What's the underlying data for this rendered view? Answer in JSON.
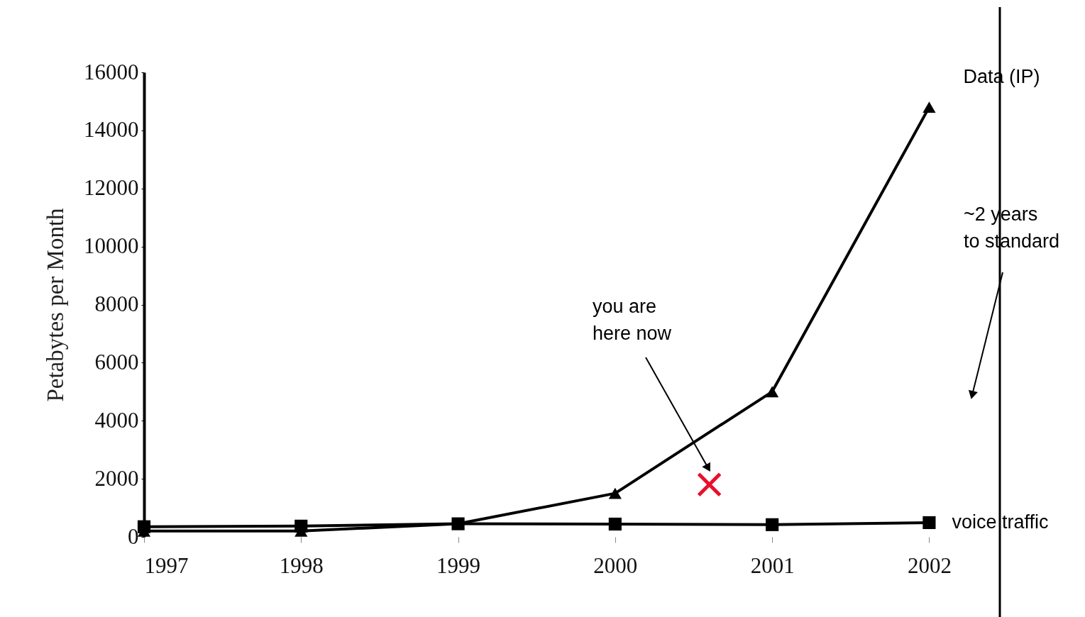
{
  "chart_data": {
    "type": "line",
    "ylabel": "Petabytes per Month",
    "x": [
      1997,
      1998,
      1999,
      2000,
      2001,
      2002
    ],
    "series": [
      {
        "name": "Data (IP)",
        "color": "#000000",
        "marker": "triangle",
        "values": [
          200,
          200,
          450,
          1500,
          5000,
          14800
        ]
      },
      {
        "name": "voice traffic",
        "color": "#000000",
        "marker": "square",
        "values": [
          350,
          370,
          450,
          440,
          420,
          490
        ]
      },
      {
        "type": "scatter",
        "color": "#e8102a",
        "marker": "cross",
        "x": [
          2000.6
        ],
        "values": [
          1800
        ]
      }
    ],
    "xlim": [
      1997,
      2002.45
    ],
    "xticks": [
      1997,
      1998,
      1999,
      2000,
      2001,
      2002
    ],
    "ylim": [
      0,
      16000
    ],
    "yticks": [
      0,
      2000,
      4000,
      6000,
      8000,
      10000,
      12000,
      14000,
      16000
    ],
    "grid": false,
    "line_style": "solid",
    "ref_lines": [
      {
        "axis": "x",
        "value": 2002.45,
        "color": "#000000"
      }
    ],
    "annotations": [
      "you are\nhere now",
      "~2 years\nto standard"
    ]
  }
}
